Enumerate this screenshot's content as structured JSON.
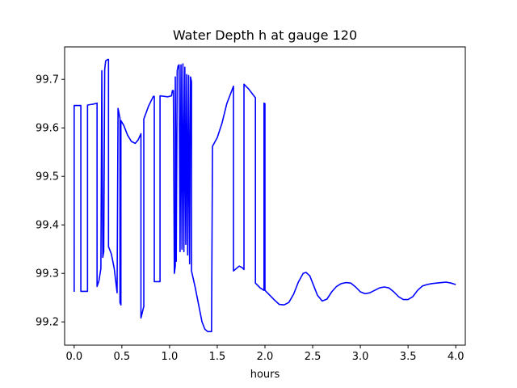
{
  "chart_data": {
    "type": "line",
    "title": "Water Depth h at gauge 120",
    "xlabel": "hours",
    "ylabel": "",
    "xlim": [
      -0.1,
      4.1
    ],
    "ylim": [
      99.152,
      99.767
    ],
    "x_ticks": [
      0.0,
      0.5,
      1.0,
      1.5,
      2.0,
      2.5,
      3.0,
      3.5,
      4.0
    ],
    "x_tick_labels": [
      "0.0",
      "0.5",
      "1.0",
      "1.5",
      "2.0",
      "2.5",
      "3.0",
      "3.5",
      "4.0"
    ],
    "y_ticks": [
      99.2,
      99.3,
      99.4,
      99.5,
      99.6,
      99.7
    ],
    "y_tick_labels": [
      "99.2",
      "99.3",
      "99.4",
      "99.5",
      "99.6",
      "99.7"
    ],
    "grid": false,
    "series": [
      {
        "color": "#0000ff",
        "points": [
          [
            0.0,
            99.262
          ],
          [
            0.0,
            99.646
          ],
          [
            0.07,
            99.646
          ],
          [
            0.07,
            99.263
          ],
          [
            0.14,
            99.263
          ],
          [
            0.14,
            99.647
          ],
          [
            0.2,
            99.649
          ],
          [
            0.24,
            99.651
          ],
          [
            0.24,
            99.273
          ],
          [
            0.26,
            99.285
          ],
          [
            0.28,
            99.31
          ],
          [
            0.29,
            99.718
          ],
          [
            0.3,
            99.333
          ],
          [
            0.31,
            99.345
          ],
          [
            0.32,
            99.72
          ],
          [
            0.33,
            99.738
          ],
          [
            0.35,
            99.741
          ],
          [
            0.36,
            99.741
          ],
          [
            0.36,
            99.355
          ],
          [
            0.39,
            99.34
          ],
          [
            0.42,
            99.31
          ],
          [
            0.45,
            99.26
          ],
          [
            0.46,
            99.64
          ],
          [
            0.48,
            99.62
          ],
          [
            0.48,
            99.24
          ],
          [
            0.49,
            99.235
          ],
          [
            0.49,
            99.615
          ],
          [
            0.52,
            99.605
          ],
          [
            0.56,
            99.585
          ],
          [
            0.6,
            99.572
          ],
          [
            0.64,
            99.568
          ],
          [
            0.67,
            99.575
          ],
          [
            0.7,
            99.588
          ],
          [
            0.7,
            99.208
          ],
          [
            0.73,
            99.232
          ],
          [
            0.73,
            99.618
          ],
          [
            0.78,
            99.645
          ],
          [
            0.83,
            99.665
          ],
          [
            0.84,
            99.665
          ],
          [
            0.84,
            99.283
          ],
          [
            0.9,
            99.283
          ],
          [
            0.9,
            99.666
          ],
          [
            0.98,
            99.664
          ],
          [
            1.02,
            99.666
          ],
          [
            1.03,
            99.677
          ],
          [
            1.04,
            99.677
          ],
          [
            1.05,
            99.3
          ],
          [
            1.06,
            99.315
          ],
          [
            1.06,
            99.705
          ],
          [
            1.07,
            99.325
          ],
          [
            1.08,
            99.718
          ],
          [
            1.09,
            99.728
          ],
          [
            1.1,
            99.73
          ],
          [
            1.11,
            99.345
          ],
          [
            1.12,
            99.73
          ],
          [
            1.13,
            99.35
          ],
          [
            1.14,
            99.732
          ],
          [
            1.15,
            99.345
          ],
          [
            1.16,
            99.725
          ],
          [
            1.17,
            99.36
          ],
          [
            1.18,
            99.71
          ],
          [
            1.19,
            99.338
          ],
          [
            1.2,
            99.708
          ],
          [
            1.21,
            99.32
          ],
          [
            1.22,
            99.705
          ],
          [
            1.23,
            99.695
          ],
          [
            1.23,
            99.305
          ],
          [
            1.27,
            99.27
          ],
          [
            1.31,
            99.23
          ],
          [
            1.34,
            99.2
          ],
          [
            1.37,
            99.185
          ],
          [
            1.4,
            99.18
          ],
          [
            1.44,
            99.18
          ],
          [
            1.45,
            99.562
          ],
          [
            1.5,
            99.58
          ],
          [
            1.55,
            99.61
          ],
          [
            1.6,
            99.65
          ],
          [
            1.67,
            99.686
          ],
          [
            1.67,
            99.305
          ],
          [
            1.7,
            99.31
          ],
          [
            1.73,
            99.315
          ],
          [
            1.76,
            99.312
          ],
          [
            1.78,
            99.308
          ],
          [
            1.78,
            99.69
          ],
          [
            1.83,
            99.68
          ],
          [
            1.9,
            99.662
          ],
          [
            1.9,
            99.28
          ],
          [
            1.95,
            99.27
          ],
          [
            1.99,
            99.265
          ],
          [
            1.99,
            99.651
          ],
          [
            2.0,
            99.65
          ],
          [
            2.0,
            99.265
          ],
          [
            2.05,
            99.255
          ],
          [
            2.1,
            99.245
          ],
          [
            2.15,
            99.236
          ],
          [
            2.2,
            99.235
          ],
          [
            2.25,
            99.24
          ],
          [
            2.3,
            99.257
          ],
          [
            2.35,
            99.282
          ],
          [
            2.4,
            99.3
          ],
          [
            2.43,
            99.302
          ],
          [
            2.47,
            99.295
          ],
          [
            2.5,
            99.28
          ],
          [
            2.55,
            99.255
          ],
          [
            2.6,
            99.243
          ],
          [
            2.65,
            99.247
          ],
          [
            2.7,
            99.262
          ],
          [
            2.75,
            99.273
          ],
          [
            2.8,
            99.279
          ],
          [
            2.85,
            99.281
          ],
          [
            2.9,
            99.28
          ],
          [
            2.95,
            99.272
          ],
          [
            3.0,
            99.262
          ],
          [
            3.05,
            99.258
          ],
          [
            3.1,
            99.26
          ],
          [
            3.15,
            99.265
          ],
          [
            3.2,
            99.27
          ],
          [
            3.25,
            99.272
          ],
          [
            3.3,
            99.27
          ],
          [
            3.35,
            99.262
          ],
          [
            3.4,
            99.252
          ],
          [
            3.45,
            99.246
          ],
          [
            3.5,
            99.246
          ],
          [
            3.55,
            99.252
          ],
          [
            3.6,
            99.265
          ],
          [
            3.65,
            99.274
          ],
          [
            3.7,
            99.277
          ],
          [
            3.75,
            99.279
          ],
          [
            3.8,
            99.28
          ],
          [
            3.85,
            99.281
          ],
          [
            3.9,
            99.282
          ],
          [
            3.95,
            99.28
          ],
          [
            4.0,
            99.277
          ]
        ]
      }
    ]
  }
}
